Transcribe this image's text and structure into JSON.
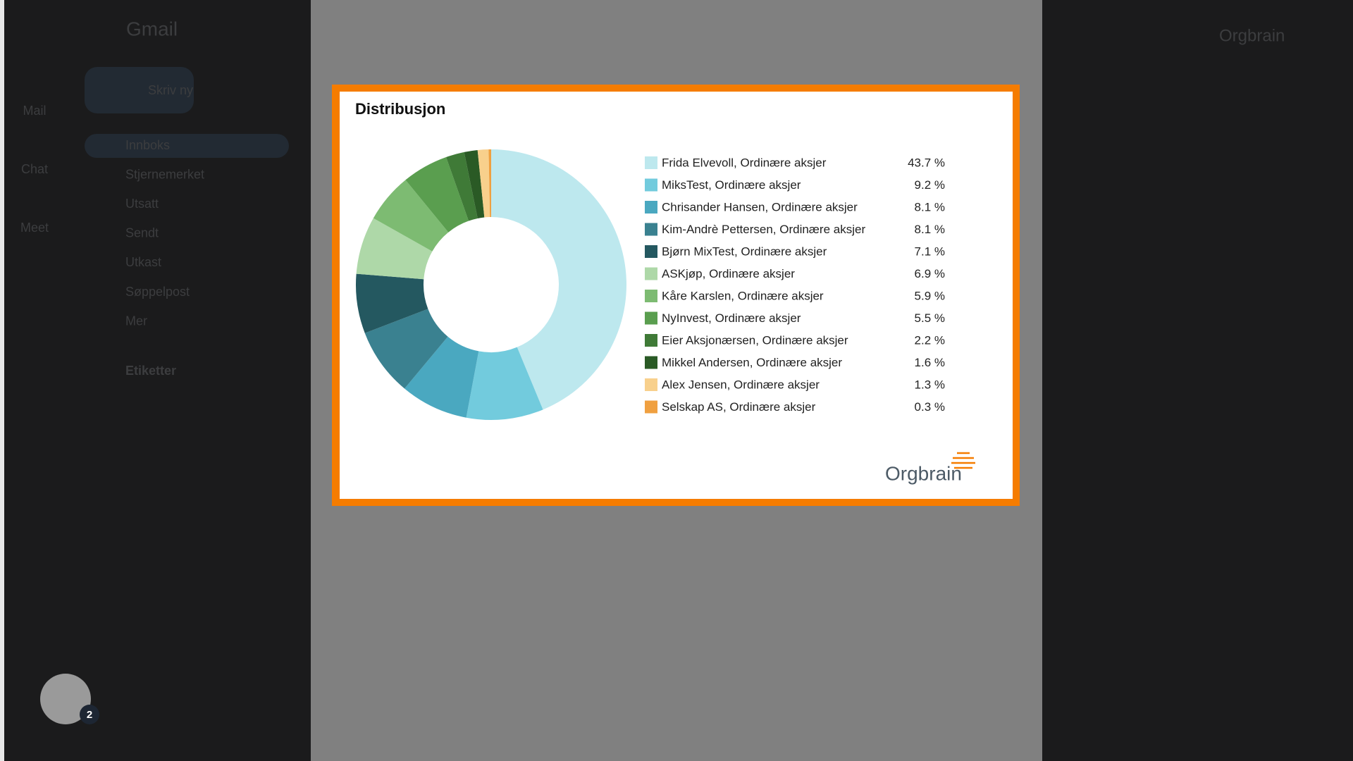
{
  "app": {
    "name": "Gmail",
    "compose": "Skriv ny",
    "rail": [
      "Mail",
      "Chat",
      "Meet"
    ],
    "nav": [
      "Innboks",
      "Stjernemerket",
      "Utsatt",
      "Sendt",
      "Utkast",
      "Søppelpost",
      "Mer"
    ],
    "labels_heading": "Etiketter",
    "account": "Orgbrain",
    "badge": "2"
  },
  "logo": "Orgbrain",
  "chart_data": {
    "type": "pie",
    "donut": true,
    "title": "Distribusjon",
    "categories": [
      "Frida Elvevoll, Ordinære aksjer",
      "MiksTest, Ordinære aksjer",
      "Chrisander Hansen, Ordinære aksjer",
      "Kim-Andrè Pettersen, Ordinære aksjer",
      "Bjørn MixTest, Ordinære aksjer",
      "ASKjøp, Ordinære aksjer",
      "Kåre Karslen, Ordinære aksjer",
      "NyInvest, Ordinære aksjer",
      "Eier Aksjonærsen, Ordinære aksjer",
      "Mikkel Andersen, Ordinære aksjer",
      "Alex Jensen, Ordinære aksjer",
      "Selskap AS, Ordinære aksjer"
    ],
    "values": [
      43.7,
      9.2,
      8.1,
      8.1,
      7.1,
      6.9,
      5.9,
      5.5,
      2.2,
      1.6,
      1.3,
      0.3
    ],
    "value_labels": [
      "43.7 %",
      "9.2 %",
      "8.1 %",
      "8.1 %",
      "7.1 %",
      "6.9 %",
      "5.9 %",
      "5.5 %",
      "2.2 %",
      "1.6 %",
      "1.3 %",
      "0.3 %"
    ],
    "colors": [
      "#bde8ee",
      "#72cbdd",
      "#4aa8c0",
      "#3a8190",
      "#245860",
      "#aed8a8",
      "#7dbb72",
      "#5a9e4f",
      "#3f7a37",
      "#2a5a25",
      "#f8d08c",
      "#f0a040"
    ],
    "legend": "right"
  }
}
